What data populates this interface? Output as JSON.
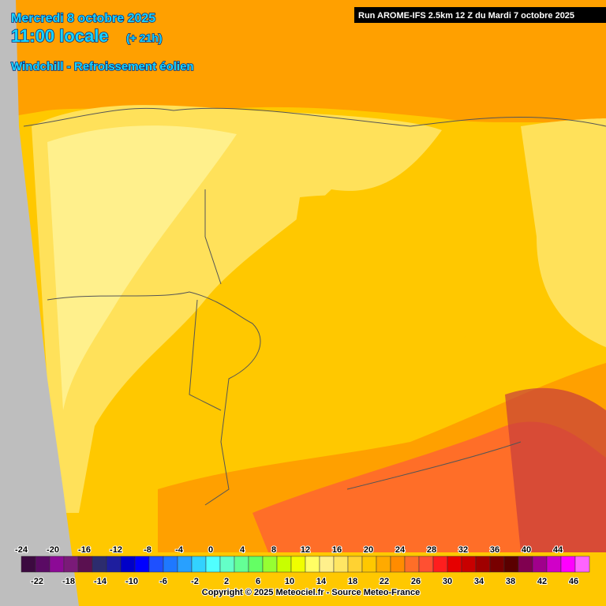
{
  "header": {
    "date": "Mercredi 8 octobre 2025",
    "time": "11:00 locale",
    "lead": "(+ 21h)",
    "parameter": "Windchill - Refroissement éolien",
    "run": "Run AROME-IFS 2.5km 12 Z du Mardi 7 octobre 2025"
  },
  "legend": {
    "colors": [
      "#3c0a40",
      "#5a0a64",
      "#8c0a96",
      "#7a1a78",
      "#5a1050",
      "#2c2c6e",
      "#1e1e9e",
      "#0000c8",
      "#0000ff",
      "#1e50ff",
      "#1e78ff",
      "#28a0ff",
      "#32d2ff",
      "#50ffff",
      "#64ffc8",
      "#64ff96",
      "#64ff64",
      "#96ff32",
      "#c8ff00",
      "#f0ff00",
      "#ffff64",
      "#fff08c",
      "#ffe664",
      "#ffd232",
      "#ffc800",
      "#ffaa00",
      "#ff8c00",
      "#ff6e28",
      "#ff5032",
      "#ff1e1e",
      "#e60000",
      "#c80000",
      "#a00000",
      "#780000",
      "#5a0000",
      "#800050",
      "#a0008c",
      "#d000c8",
      "#ff00ff",
      "#ff64ff"
    ],
    "labels_top": [
      -24,
      -20,
      -16,
      -12,
      -8,
      -4,
      0,
      4,
      8,
      12,
      16,
      20,
      24,
      28,
      32,
      36,
      40,
      44
    ],
    "labels_bottom": [
      -22,
      -18,
      -14,
      -10,
      -6,
      -2,
      2,
      6,
      10,
      14,
      18,
      22,
      26,
      30,
      34,
      38,
      42,
      46
    ]
  },
  "footer": {
    "copyright": "Copyright © 2025 Meteociel.fr - Source Meteo-France"
  }
}
